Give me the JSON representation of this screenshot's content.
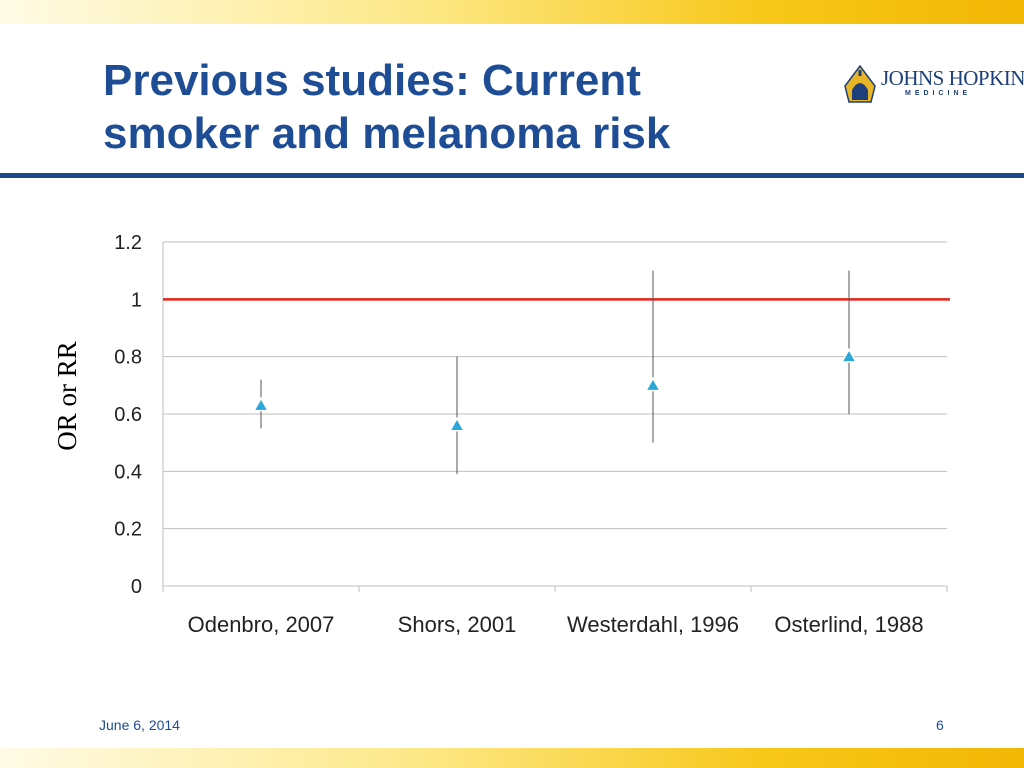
{
  "slide": {
    "title_line1": "Previous studies: Current",
    "title_line2": "smoker and melanoma risk",
    "logo_text": "JOHNS HOPKINS",
    "logo_subtext": "MEDICINE",
    "footer_date": "June 6, 2014",
    "page_number": "6"
  },
  "colors": {
    "title": "#1e4d96",
    "rule": "#1c4a89",
    "reference_line": "#e8221b",
    "marker_fill": "#2aa9d8",
    "error_bar": "#555555",
    "grid": "#bfbfbf"
  },
  "chart_data": {
    "type": "scatter",
    "title": "",
    "xlabel": "",
    "ylabel": "OR or RR",
    "categories": [
      "Odenbro, 2007",
      "Shors, 2001",
      "Westerdahl, 1996",
      "Osterlind, 1988"
    ],
    "values": [
      0.63,
      0.56,
      0.7,
      0.8
    ],
    "error_low": [
      0.55,
      0.39,
      0.5,
      0.6
    ],
    "error_high": [
      0.72,
      0.8,
      1.1,
      1.1
    ],
    "reference_line": 1,
    "ylim": [
      0,
      1.2
    ],
    "yticks": [
      "0",
      "0.2",
      "0.4",
      "0.6",
      "0.8",
      "1",
      "1.2"
    ],
    "grid": true,
    "marker": "triangle"
  }
}
